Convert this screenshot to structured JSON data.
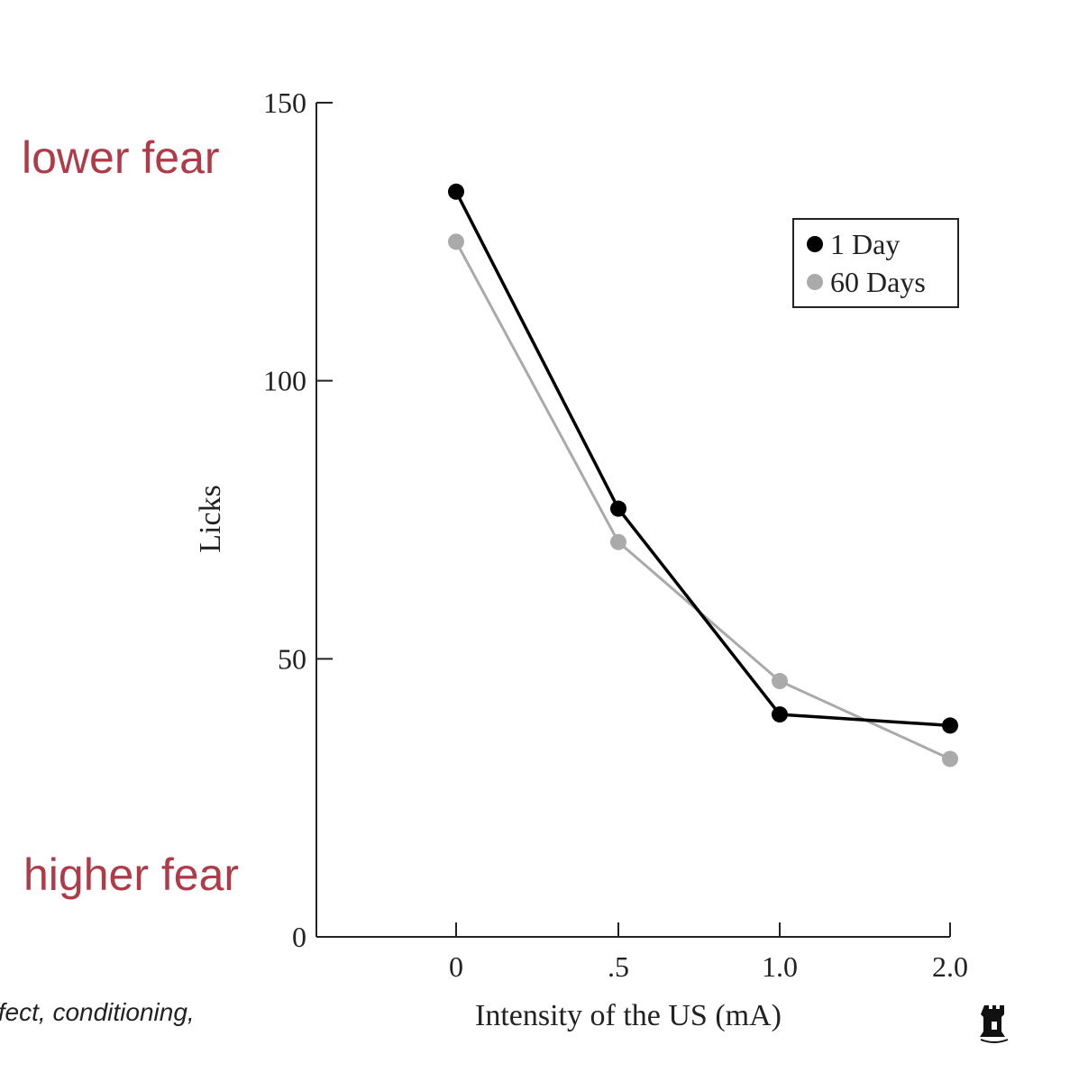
{
  "annotations": {
    "top": "lower fear",
    "bottom": "higher fear",
    "color": "#b03a48"
  },
  "caption": "ffect, conditioning,",
  "crest_icon": "university-crest-icon",
  "chart_data": {
    "type": "line",
    "title": "",
    "xlabel": "Intensity of the US (mA)",
    "ylabel": "Licks",
    "categories": [
      "0",
      ".5",
      "1.0",
      "2.0"
    ],
    "x": [
      0,
      0.5,
      1.0,
      2.0
    ],
    "ylim": [
      0,
      150
    ],
    "yticks": [
      0,
      50,
      100,
      150
    ],
    "series": [
      {
        "name": "1 Day",
        "color": "#000000",
        "values": [
          134,
          77,
          40,
          38
        ]
      },
      {
        "name": "60 Days",
        "color": "#aaaaaa",
        "values": [
          125,
          71,
          46,
          32
        ]
      }
    ],
    "legend": {
      "position": "top-right"
    },
    "grid": false
  }
}
